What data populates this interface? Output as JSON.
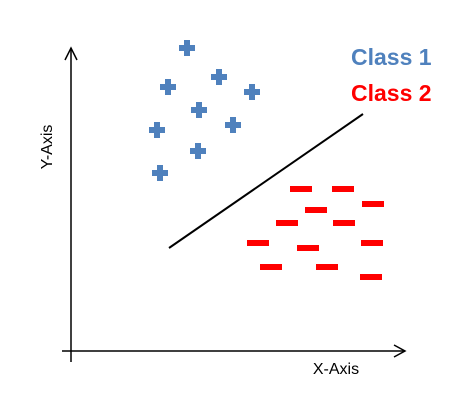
{
  "axes": {
    "x_label": "X-Axis",
    "y_label": "Y-Axis",
    "axis_color": "#000000"
  },
  "legend": [
    {
      "label": "Class 1",
      "color": "#4f81bd"
    },
    {
      "label": "Class 2",
      "color": "#ff0000"
    }
  ],
  "class1": {
    "marker": "plus-marker",
    "color": "#4f81bd"
  },
  "class2": {
    "marker": "minus-marker",
    "color": "#ff0000"
  },
  "decision_boundary": {
    "color": "#000000"
  }
}
